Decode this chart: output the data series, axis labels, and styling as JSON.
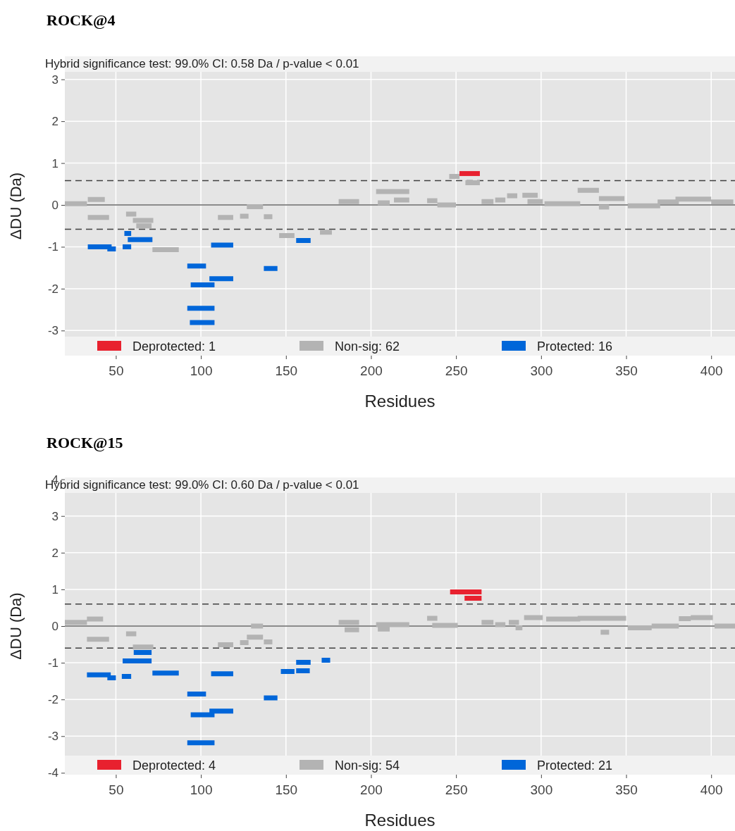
{
  "chart_data": [
    {
      "type": "line",
      "title": "ROCK@4",
      "subtitle": "Hybrid significance test: 99.0% CI: 0.58 Da / p-value < 0.01",
      "xlabel": "Residues",
      "ylabel": "ΔDU (Da)",
      "xlim": [
        20,
        414
      ],
      "xticks": [
        50,
        100,
        150,
        200,
        250,
        300,
        350,
        400
      ],
      "ylim": [
        -3.6,
        3.55
      ],
      "yticks": [
        -3,
        -2,
        -1,
        0,
        1,
        2,
        3
      ],
      "grid": true,
      "legend": "bottom",
      "marker": "none",
      "line_style": "solid",
      "ref_lines": [
        {
          "axis": "y",
          "value": 0.58,
          "color": "#404040",
          "line_style": "dashed"
        },
        {
          "axis": "y",
          "value": -0.58,
          "color": "#404040",
          "line_style": "dashed"
        },
        {
          "axis": "y",
          "value": 0,
          "color": "#666666",
          "line_style": "solid"
        }
      ],
      "series": [
        {
          "name": "Deprotected: 1",
          "color": "#e8212f",
          "x": [
            252,
            264,
            null
          ],
          "values": [
            0.75,
            0.75,
            null
          ]
        },
        {
          "name": "Non-sig: 62",
          "color": "#b3b3b3",
          "x": [
            20,
            33,
            null,
            33.5,
            43.5,
            null,
            33.5,
            46,
            null,
            56,
            62,
            null,
            60,
            72,
            null,
            62,
            71,
            null,
            71.5,
            87,
            null,
            110,
            119,
            null,
            123,
            128,
            null,
            127,
            136.5,
            null,
            137,
            142,
            null,
            146,
            155,
            null,
            170,
            177,
            null,
            181,
            193,
            null,
            203,
            222.5,
            null,
            204,
            211,
            null,
            213.5,
            222.5,
            null,
            233,
            239,
            null,
            239,
            250,
            null,
            246,
            252,
            null,
            255.5,
            264,
            null,
            265,
            272,
            null,
            273,
            279,
            null,
            280,
            286,
            null,
            289,
            298,
            null,
            292,
            301,
            null,
            302,
            323,
            null,
            321.5,
            334,
            null,
            334,
            349,
            null,
            334,
            340,
            null,
            351,
            370,
            null,
            368.5,
            381,
            null,
            379,
            387,
            null,
            387,
            400,
            null,
            400,
            413,
            null
          ],
          "values": [
            0.03,
            0.03,
            null,
            0.13,
            0.13,
            null,
            -0.3,
            -0.3,
            null,
            -0.22,
            -0.22,
            null,
            -0.37,
            -0.37,
            null,
            -0.5,
            -0.5,
            null,
            -1.07,
            -1.07,
            null,
            -0.3,
            -0.3,
            null,
            -0.27,
            -0.27,
            null,
            -0.04,
            -0.04,
            null,
            -0.28,
            -0.28,
            null,
            -0.73,
            -0.73,
            null,
            -0.65,
            -0.65,
            null,
            0.08,
            0.08,
            null,
            0.32,
            0.32,
            null,
            0.05,
            0.05,
            null,
            0.12,
            0.12,
            null,
            0.1,
            0.1,
            null,
            0,
            0,
            null,
            0.68,
            0.68,
            null,
            0.53,
            0.53,
            null,
            0.08,
            0.08,
            null,
            0.12,
            0.12,
            null,
            0.22,
            0.22,
            null,
            0.23,
            0.23,
            null,
            0.08,
            0.08,
            null,
            0.03,
            0.03,
            null,
            0.35,
            0.35,
            null,
            0.15,
            0.15,
            null,
            -0.05,
            -0.05,
            null,
            -0.02,
            -0.02,
            null,
            0.07,
            0.07,
            null,
            0.14,
            0.14,
            null,
            0.14,
            0.14,
            null,
            0.07,
            0.07,
            null
          ]
        },
        {
          "name": "Protected: 16",
          "color": "#0066d9",
          "x": [
            33.5,
            47.5,
            null,
            45,
            50,
            null,
            54,
            59,
            null,
            55,
            59,
            null,
            57,
            71.5,
            null,
            92,
            103,
            null,
            94,
            108,
            null,
            105,
            119,
            null,
            106,
            119,
            null,
            92,
            108,
            null,
            93.5,
            108,
            null,
            137,
            145,
            null,
            156,
            164.5,
            null
          ],
          "values": [
            -1,
            -1,
            null,
            -1.05,
            -1.05,
            null,
            -1,
            -1,
            null,
            -0.68,
            -0.68,
            null,
            -0.83,
            -0.83,
            null,
            -1.46,
            -1.46,
            null,
            -1.91,
            -1.91,
            null,
            -1.76,
            -1.76,
            null,
            -0.96,
            -0.96,
            null,
            -2.47,
            -2.47,
            null,
            -2.81,
            -2.81,
            null,
            -1.52,
            -1.52,
            null,
            -0.85,
            -0.85,
            null
          ]
        }
      ]
    },
    {
      "type": "line",
      "title": "ROCK@15",
      "subtitle": "Hybrid significance test: 99.0% CI: 0.60 Da / p-value < 0.01",
      "xlabel": "Residues",
      "ylabel": "ΔDU (Da)",
      "xlim": [
        20,
        414
      ],
      "xticks": [
        50,
        100,
        150,
        200,
        250,
        300,
        350,
        400
      ],
      "ylim": [
        -4.05,
        4.05
      ],
      "yticks": [
        -4,
        -3,
        -2,
        -1,
        0,
        1,
        2,
        3,
        4
      ],
      "grid": true,
      "legend": "bottom",
      "marker": "none",
      "line_style": "solid",
      "ref_lines": [
        {
          "axis": "y",
          "value": 0.6,
          "color": "#404040",
          "line_style": "dashed"
        },
        {
          "axis": "y",
          "value": -0.6,
          "color": "#404040",
          "line_style": "dashed"
        },
        {
          "axis": "y",
          "value": 0,
          "color": "#666666",
          "line_style": "solid"
        }
      ],
      "series": [
        {
          "name": "Deprotected: 4",
          "color": "#e8212f",
          "x": [
            246.5,
            265,
            null,
            255,
            265,
            null
          ],
          "values": [
            0.93,
            0.93,
            null,
            0.76,
            0.76,
            null
          ]
        },
        {
          "name": "Non-sig: 54",
          "color": "#b3b3b3",
          "x": [
            20,
            33,
            null,
            33,
            42.5,
            null,
            33,
            46,
            null,
            56,
            62,
            null,
            60,
            72,
            null,
            110,
            119,
            null,
            123,
            128,
            null,
            127,
            136.5,
            null,
            129.5,
            136.5,
            null,
            137,
            142,
            null,
            181,
            193,
            null,
            184.5,
            193,
            null,
            203,
            222.5,
            null,
            204,
            211,
            null,
            233,
            239,
            null,
            236,
            251,
            null,
            265,
            272,
            null,
            273,
            279,
            null,
            281,
            287,
            null,
            285,
            289,
            null,
            290,
            301,
            null,
            303,
            323,
            null,
            321.5,
            350,
            null,
            335,
            340,
            null,
            351,
            365,
            null,
            365,
            381,
            null,
            381,
            388,
            null,
            388,
            401,
            null,
            402,
            414,
            null
          ],
          "values": [
            0.1,
            0.1,
            null,
            0.19,
            0.19,
            null,
            -0.36,
            -0.36,
            null,
            -0.21,
            -0.21,
            null,
            -0.57,
            -0.57,
            null,
            -0.51,
            -0.51,
            null,
            -0.45,
            -0.45,
            null,
            -0.3,
            -0.3,
            null,
            0,
            0,
            null,
            -0.43,
            -0.43,
            null,
            0.1,
            0.1,
            null,
            -0.1,
            -0.1,
            null,
            0.04,
            0.04,
            null,
            -0.08,
            -0.08,
            null,
            0.21,
            0.21,
            null,
            0.02,
            0.02,
            null,
            0.1,
            0.1,
            null,
            0.04,
            0.04,
            null,
            0.1,
            0.1,
            null,
            -0.05,
            -0.05,
            null,
            0.23,
            0.23,
            null,
            0.19,
            0.19,
            null,
            0.21,
            0.21,
            null,
            -0.17,
            -0.17,
            null,
            -0.05,
            -0.05,
            null,
            0,
            0,
            null,
            0.2,
            0.2,
            null,
            0.23,
            0.23,
            null,
            0,
            0,
            null
          ]
        },
        {
          "name": "Protected: 21",
          "color": "#0066d9",
          "x": [
            33,
            47,
            null,
            45,
            50,
            null,
            53.5,
            59,
            null,
            60.5,
            71,
            null,
            54,
            71,
            null,
            71.5,
            87,
            null,
            92,
            103,
            null,
            94,
            108,
            null,
            105,
            119,
            null,
            106,
            119,
            null,
            92,
            108,
            null,
            137,
            145,
            null,
            147,
            155,
            null,
            156,
            164.5,
            null,
            156,
            164,
            null,
            171,
            176,
            null
          ],
          "values": [
            -1.33,
            -1.33,
            null,
            -1.41,
            -1.41,
            null,
            -1.37,
            -1.37,
            null,
            -0.72,
            -0.72,
            null,
            -0.95,
            -0.95,
            null,
            -1.28,
            -1.28,
            null,
            -1.85,
            -1.85,
            null,
            -2.42,
            -2.42,
            null,
            -2.32,
            -2.32,
            null,
            -1.3,
            -1.3,
            null,
            -3.18,
            -3.18,
            null,
            -1.96,
            -1.96,
            null,
            -1.24,
            -1.24,
            null,
            -0.99,
            -0.99,
            null,
            -1.22,
            -1.22,
            null,
            -0.93,
            -0.93,
            null
          ]
        }
      ]
    }
  ]
}
